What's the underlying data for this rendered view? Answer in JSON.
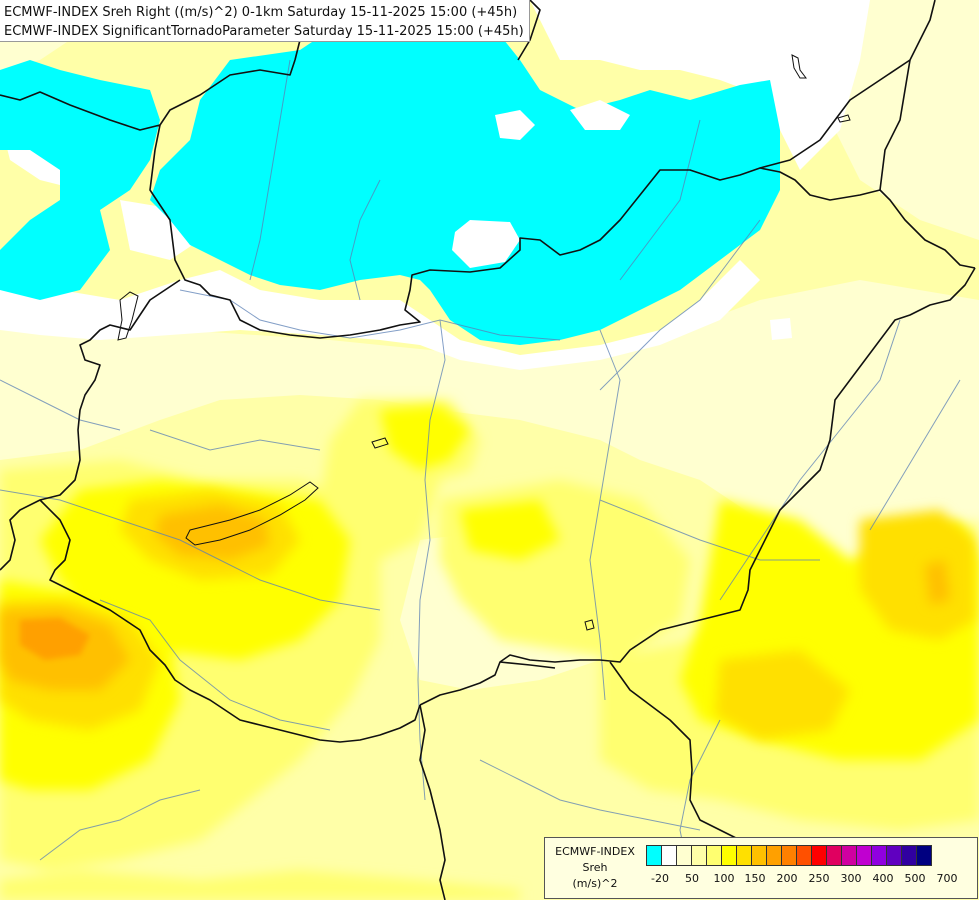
{
  "title": {
    "line1": "ECMWF-INDEX Sreh Right ((m/s)^2) 0-1km Saturday 15-11-2025 15:00 (+45h)",
    "line2": "ECMWF-INDEX SignificantTornadoParameter Saturday 15-11-2025 15:00 (+45h)"
  },
  "legend": {
    "name_line1": "ECMWF-INDEX",
    "name_line2": "Sreh",
    "name_line3": "(m/s)^2",
    "colors": [
      "#00ffff",
      "#ffffff",
      "#ffffd0",
      "#ffffa8",
      "#ffff70",
      "#ffff00",
      "#ffe000",
      "#ffc000",
      "#ffa000",
      "#ff8000",
      "#ff5000",
      "#ff0000",
      "#e00060",
      "#d000a0",
      "#c000d0",
      "#9000e0",
      "#6000c0",
      "#3000a0",
      "#000080"
    ],
    "ticks": [
      "-20",
      "50",
      "100",
      "150",
      "200",
      "250",
      "300",
      "400",
      "500",
      "700"
    ]
  }
}
